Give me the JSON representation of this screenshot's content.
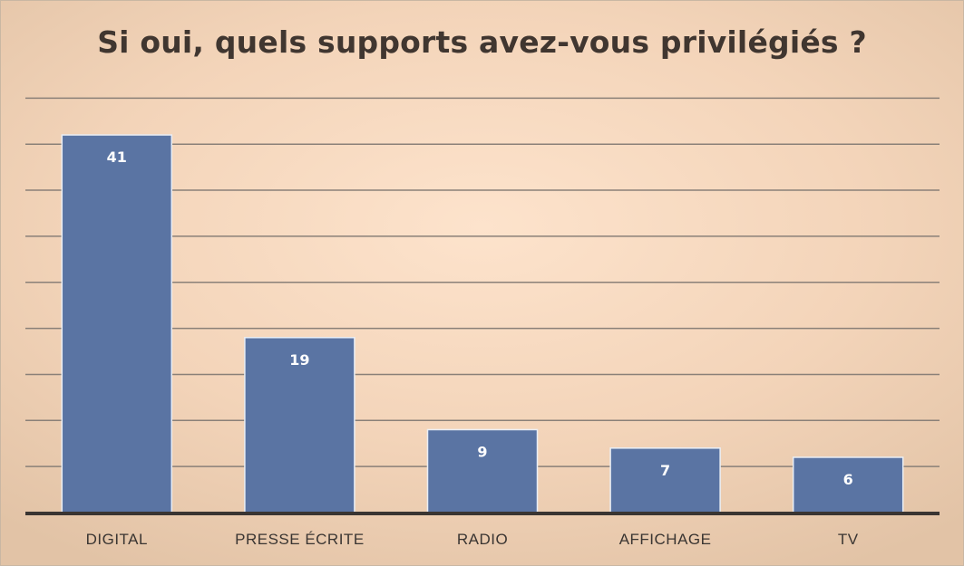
{
  "chart_data": {
    "type": "bar",
    "title": "Si oui, quels supports avez-vous privilégiés ?",
    "categories": [
      "DIGITAL",
      "PRESSE ÉCRITE",
      "RADIO",
      "AFFICHAGE",
      "TV"
    ],
    "values": [
      41,
      19,
      9,
      7,
      6
    ],
    "ylim": [
      0,
      45
    ],
    "grid": true,
    "legend": "none",
    "data_labels": "inside-top",
    "colors": {
      "bar": "#5a74a3",
      "bar_border": "#e9eef5",
      "gridline": "#8a8078",
      "axis": "#3a3532",
      "title": "#403630"
    }
  }
}
